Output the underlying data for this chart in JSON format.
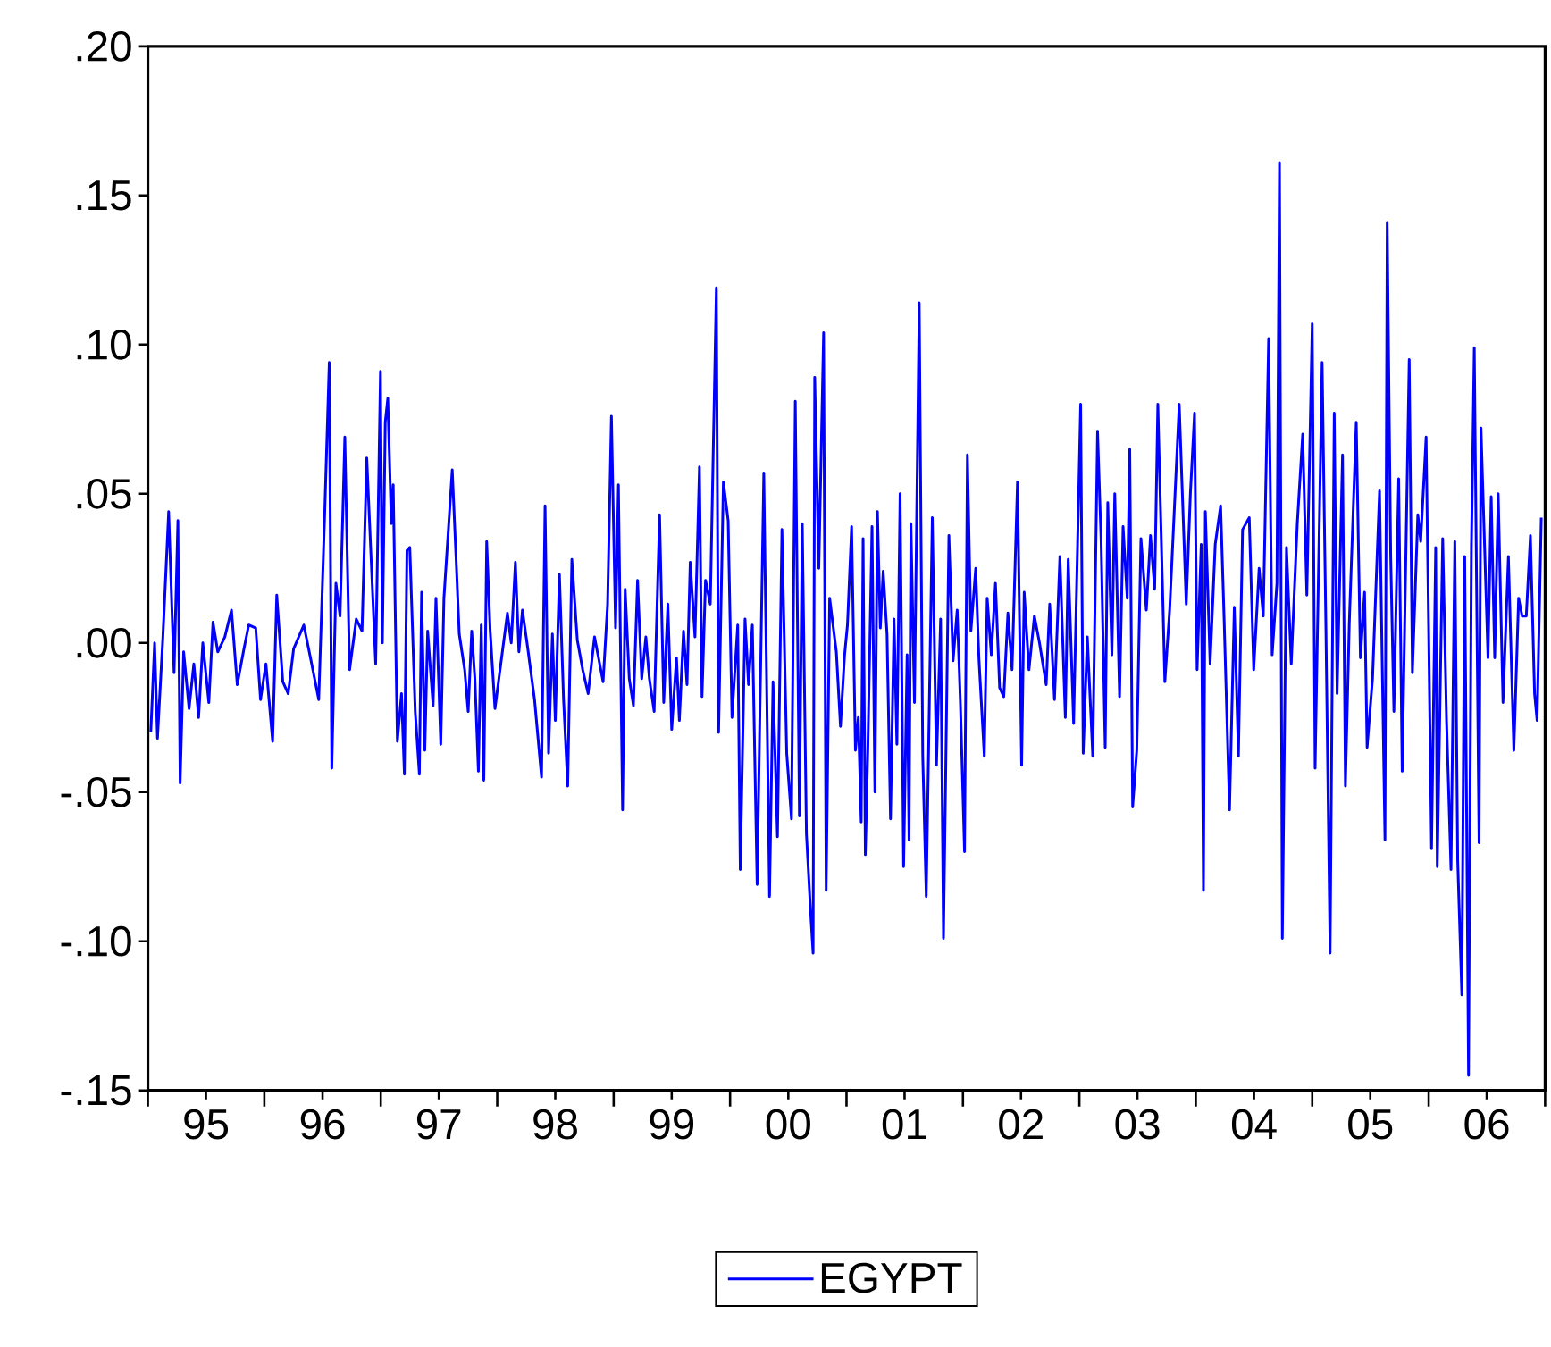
{
  "chart_data": {
    "type": "line",
    "x": [
      "1995-01-10",
      "1995-01-22",
      "1995-01-31",
      "1995-02-17",
      "1995-03-07",
      "1995-03-24",
      "1995-04-05",
      "1995-04-12",
      "1995-04-23",
      "1995-05-10",
      "1995-05-25",
      "1995-06-09",
      "1995-06-22",
      "1995-07-11",
      "1995-07-24",
      "1995-08-08",
      "1995-08-30",
      "1995-09-20",
      "1995-10-08",
      "1995-10-29",
      "1995-11-13",
      "1995-12-05",
      "1995-12-20",
      "1996-01-06",
      "1996-01-27",
      "1996-02-09",
      "1996-02-28",
      "1996-03-16",
      "1996-04-02",
      "1996-05-04",
      "1996-05-25",
      "1996-06-20",
      "1996-07-08",
      "1996-07-23",
      "1996-07-31",
      "1996-08-13",
      "1996-08-26",
      "1996-09-10",
      "1996-09-25",
      "1996-10-16",
      "1996-11-03",
      "1996-11-18",
      "1996-12-16",
      "1996-12-31",
      "1997-01-06",
      "1997-01-15",
      "1997-01-23",
      "1997-02-03",
      "1997-02-09",
      "1997-02-22",
      "1997-03-07",
      "1997-03-16",
      "1997-03-24",
      "1997-04-02",
      "1997-04-19",
      "1997-05-02",
      "1997-05-09",
      "1997-05-19",
      "1997-05-28",
      "1997-06-14",
      "1997-06-23",
      "1997-07-08",
      "1997-07-18",
      "1997-08-13",
      "1997-08-26",
      "1997-09-04",
      "1997-09-21",
      "1997-10-02",
      "1997-10-13",
      "1997-10-23",
      "1997-11-03",
      "1997-11-12",
      "1997-11-20",
      "1997-11-29",
      "1997-12-10",
      "1997-12-25",
      "1998-02-02",
      "1998-02-14",
      "1998-02-27",
      "1998-03-10",
      "1998-03-21",
      "1998-04-07",
      "1998-04-28",
      "1998-05-20",
      "1998-05-31",
      "1998-06-11",
      "1998-06-23",
      "1998-07-02",
      "1998-07-15",
      "1998-07-28",
      "1998-08-10",
      "1998-08-23",
      "1998-09-09",
      "1998-09-26",
      "1998-10-13",
      "1998-11-02",
      "1998-11-29",
      "1998-12-13",
      "1998-12-25",
      "1999-01-07",
      "1999-01-16",
      "1999-01-29",
      "1999-02-06",
      "1999-02-19",
      "1999-03-04",
      "1999-03-17",
      "1999-03-30",
      "1999-04-12",
      "1999-04-23",
      "1999-05-08",
      "1999-05-25",
      "1999-06-07",
      "1999-06-20",
      "1999-07-02",
      "1999-07-17",
      "1999-07-26",
      "1999-08-08",
      "1999-08-19",
      "1999-08-29",
      "1999-09-13",
      "1999-09-27",
      "1999-10-05",
      "1999-10-16",
      "1999-10-31",
      "1999-11-19",
      "1999-11-26",
      "1999-12-11",
      "1999-12-26",
      "2000-01-07",
      "2000-01-25",
      "2000-02-02",
      "2000-02-17",
      "2000-02-28",
      "2000-03-11",
      "2000-03-26",
      "2000-04-16",
      "2000-05-04",
      "2000-05-15",
      "2000-05-29",
      "2000-06-12",
      "2000-06-27",
      "2000-07-12",
      "2000-07-24",
      "2000-08-06",
      "2000-08-15",
      "2000-08-28",
      "2000-09-10",
      "2000-09-18",
      "2000-09-23",
      "2000-10-06",
      "2000-10-21",
      "2000-10-29",
      "2000-11-09",
      "2000-11-30",
      "2000-12-13",
      "2000-12-26",
      "2001-01-04",
      "2001-01-17",
      "2001-01-29",
      "2001-02-07",
      "2001-02-16",
      "2001-02-22",
      "2001-03-01",
      "2001-03-09",
      "2001-03-22",
      "2001-03-31",
      "2001-04-08",
      "2001-04-17",
      "2001-04-26",
      "2001-05-08",
      "2001-05-19",
      "2001-05-30",
      "2001-06-08",
      "2001-06-18",
      "2001-06-29",
      "2001-07-10",
      "2001-07-16",
      "2001-07-22",
      "2001-08-02",
      "2001-08-17",
      "2001-08-28",
      "2001-09-08",
      "2001-09-27",
      "2001-10-10",
      "2001-10-23",
      "2001-11-01",
      "2001-11-18",
      "2001-12-01",
      "2001-12-14",
      "2001-12-24",
      "2002-01-06",
      "2002-01-15",
      "2002-01-26",
      "2002-02-10",
      "2002-02-20",
      "2002-03-09",
      "2002-03-18",
      "2002-03-31",
      "2002-04-13",
      "2002-04-26",
      "2002-05-09",
      "2002-05-22",
      "2002-06-04",
      "2002-06-21",
      "2002-07-04",
      "2002-07-12",
      "2002-07-27",
      "2002-08-13",
      "2002-08-29",
      "2002-09-19",
      "2002-09-30",
      "2002-10-15",
      "2002-11-01",
      "2002-11-18",
      "2002-11-27",
      "2002-12-14",
      "2003-01-05",
      "2003-01-13",
      "2003-01-26",
      "2003-02-12",
      "2003-02-27",
      "2003-03-10",
      "2003-03-23",
      "2003-03-31",
      "2003-04-13",
      "2003-04-22",
      "2003-05-07",
      "2003-05-18",
      "2003-05-31",
      "2003-06-08",
      "2003-06-17",
      "2003-06-30",
      "2003-07-13",
      "2003-07-30",
      "2003-08-12",
      "2003-08-25",
      "2003-09-04",
      "2003-09-20",
      "2003-09-26",
      "2003-10-11",
      "2003-11-10",
      "2003-12-02",
      "2003-12-15",
      "2003-12-28",
      "2004-01-05",
      "2004-01-18",
      "2004-01-25",
      "2004-01-31",
      "2004-02-15",
      "2004-03-02",
      "2004-03-19",
      "2004-03-30",
      "2004-04-16",
      "2004-05-01",
      "2004-05-14",
      "2004-05-27",
      "2004-06-17",
      "2004-07-01",
      "2004-07-18",
      "2004-07-31",
      "2004-08-17",
      "2004-08-28",
      "2004-09-12",
      "2004-09-20",
      "2004-09-29",
      "2004-10-12",
      "2004-10-27",
      "2004-11-15",
      "2004-12-02",
      "2004-12-15",
      "2005-01-01",
      "2005-01-10",
      "2005-02-01",
      "2005-02-13",
      "2005-02-26",
      "2005-03-11",
      "2005-03-20",
      "2005-04-06",
      "2005-04-15",
      "2005-04-27",
      "2005-05-19",
      "2005-06-01",
      "2005-06-14",
      "2005-06-22",
      "2005-07-09",
      "2005-07-31",
      "2005-08-17",
      "2005-08-24",
      "2005-09-04",
      "2005-09-14",
      "2005-09-29",
      "2005-10-10",
      "2005-11-01",
      "2005-11-11",
      "2005-11-28",
      "2005-12-07",
      "2005-12-24",
      "2006-01-10",
      "2006-01-23",
      "2006-01-28",
      "2006-02-14",
      "2006-02-26",
      "2006-03-12",
      "2006-03-24",
      "2006-04-02",
      "2006-04-15",
      "2006-04-24",
      "2006-05-06",
      "2006-05-15",
      "2006-05-24",
      "2006-06-08",
      "2006-06-14",
      "2006-07-06",
      "2006-07-16",
      "2006-07-27",
      "2006-08-07",
      "2006-08-22",
      "2006-09-08",
      "2006-09-25",
      "2006-10-10",
      "2006-10-21",
      "2006-11-03",
      "2006-11-16",
      "2006-11-29",
      "2006-12-07",
      "2006-12-20"
    ],
    "series": [
      {
        "name": "EGYPT",
        "color": "#0000ff",
        "values": [
          -0.03,
          0.0,
          -0.032,
          0.002,
          0.044,
          -0.01,
          0.041,
          -0.047,
          -0.003,
          -0.022,
          -0.007,
          -0.025,
          0.0,
          -0.02,
          0.007,
          -0.003,
          0.002,
          0.011,
          -0.014,
          -0.002,
          0.006,
          0.005,
          -0.019,
          -0.007,
          -0.033,
          0.016,
          -0.013,
          -0.017,
          -0.002,
          0.006,
          -0.005,
          -0.019,
          0.041,
          0.094,
          -0.042,
          0.02,
          0.009,
          0.069,
          -0.009,
          0.008,
          0.004,
          0.062,
          -0.007,
          0.091,
          0.0,
          0.074,
          0.082,
          0.04,
          0.053,
          -0.033,
          -0.017,
          -0.044,
          0.031,
          0.032,
          -0.023,
          -0.044,
          0.017,
          -0.036,
          0.004,
          -0.021,
          0.015,
          -0.034,
          0.015,
          0.058,
          0.026,
          0.003,
          -0.009,
          -0.023,
          0.004,
          -0.012,
          -0.043,
          0.006,
          -0.046,
          0.034,
          0.004,
          -0.022,
          0.01,
          0.0,
          0.027,
          -0.003,
          0.011,
          -0.002,
          -0.019,
          -0.045,
          0.046,
          -0.037,
          0.003,
          -0.026,
          0.023,
          -0.019,
          -0.048,
          0.028,
          0.001,
          -0.009,
          -0.017,
          0.002,
          -0.013,
          0.013,
          0.076,
          0.005,
          0.053,
          -0.056,
          0.018,
          -0.012,
          -0.021,
          0.021,
          -0.012,
          0.002,
          -0.012,
          -0.023,
          0.043,
          -0.02,
          0.013,
          -0.029,
          -0.005,
          -0.026,
          0.004,
          -0.014,
          0.027,
          0.002,
          0.059,
          -0.018,
          0.021,
          0.013,
          0.119,
          -0.03,
          0.054,
          0.041,
          -0.025,
          0.006,
          -0.076,
          0.008,
          -0.014,
          0.006,
          -0.081,
          0.057,
          -0.085,
          -0.013,
          -0.065,
          0.038,
          -0.037,
          -0.059,
          0.081,
          -0.058,
          0.04,
          -0.064,
          -0.09,
          -0.104,
          0.089,
          0.025,
          0.104,
          -0.083,
          0.015,
          -0.003,
          -0.028,
          -0.004,
          0.006,
          0.039,
          -0.036,
          -0.025,
          -0.06,
          0.035,
          -0.071,
          -0.035,
          0.039,
          -0.05,
          0.044,
          0.005,
          0.024,
          0.003,
          -0.059,
          0.008,
          -0.034,
          0.05,
          -0.075,
          -0.004,
          -0.066,
          0.04,
          -0.02,
          0.114,
          -0.038,
          -0.085,
          0.042,
          -0.041,
          0.008,
          -0.099,
          0.036,
          -0.006,
          0.011,
          -0.02,
          -0.07,
          0.063,
          0.004,
          0.025,
          -0.005,
          -0.038,
          0.015,
          -0.004,
          0.02,
          -0.015,
          -0.018,
          0.01,
          -0.009,
          0.054,
          -0.041,
          0.017,
          -0.009,
          0.009,
          0.0,
          -0.014,
          0.013,
          -0.019,
          0.029,
          -0.025,
          0.028,
          -0.027,
          0.08,
          -0.037,
          0.002,
          -0.038,
          0.071,
          0.035,
          -0.035,
          0.047,
          -0.004,
          0.05,
          -0.018,
          0.039,
          0.015,
          0.065,
          -0.055,
          -0.036,
          0.035,
          0.011,
          0.036,
          0.018,
          0.08,
          0.013,
          -0.013,
          0.011,
          0.08,
          0.013,
          0.05,
          0.077,
          -0.009,
          0.033,
          -0.083,
          0.044,
          -0.007,
          0.033,
          0.046,
          0.008,
          -0.056,
          0.012,
          -0.038,
          0.038,
          0.042,
          -0.009,
          0.025,
          0.009,
          0.102,
          -0.004,
          0.02,
          0.161,
          -0.099,
          0.032,
          -0.007,
          0.04,
          0.07,
          0.016,
          0.107,
          -0.042,
          0.094,
          0.004,
          -0.104,
          0.077,
          -0.017,
          0.063,
          -0.048,
          0.006,
          0.074,
          -0.005,
          0.017,
          -0.035,
          -0.012,
          0.051,
          -0.066,
          0.141,
          0.029,
          -0.023,
          0.055,
          -0.043,
          0.095,
          -0.01,
          0.043,
          0.034,
          0.069,
          -0.069,
          0.032,
          -0.075,
          0.035,
          -0.026,
          -0.076,
          0.034,
          -0.073,
          -0.118,
          0.029,
          -0.145,
          0.032,
          0.099,
          -0.067,
          0.072,
          -0.005,
          0.049,
          -0.005,
          0.05,
          -0.02,
          0.029,
          -0.036,
          0.015,
          0.009,
          0.009,
          0.036,
          -0.017,
          -0.026,
          0.042
        ]
      }
    ],
    "xlim": [
      "1995-01-01",
      "2007-01-01"
    ],
    "xticks": [
      {
        "value": "1995-01-01",
        "label": null
      },
      {
        "value": "1995-07-02",
        "label": "95"
      },
      {
        "value": "1996-01-01",
        "label": null
      },
      {
        "value": "1996-07-02",
        "label": "96"
      },
      {
        "value": "1997-01-01",
        "label": null
      },
      {
        "value": "1997-07-02",
        "label": "97"
      },
      {
        "value": "1998-01-01",
        "label": null
      },
      {
        "value": "1998-07-02",
        "label": "98"
      },
      {
        "value": "1999-01-01",
        "label": null
      },
      {
        "value": "1999-07-02",
        "label": "99"
      },
      {
        "value": "2000-01-01",
        "label": null
      },
      {
        "value": "2000-07-02",
        "label": "00"
      },
      {
        "value": "2001-01-01",
        "label": null
      },
      {
        "value": "2001-07-02",
        "label": "01"
      },
      {
        "value": "2002-01-01",
        "label": null
      },
      {
        "value": "2002-07-02",
        "label": "02"
      },
      {
        "value": "2003-01-01",
        "label": null
      },
      {
        "value": "2003-07-02",
        "label": "03"
      },
      {
        "value": "2004-01-01",
        "label": null
      },
      {
        "value": "2004-07-02",
        "label": "04"
      },
      {
        "value": "2005-01-01",
        "label": null
      },
      {
        "value": "2005-07-02",
        "label": "05"
      },
      {
        "value": "2006-01-01",
        "label": null
      },
      {
        "value": "2006-07-02",
        "label": "06"
      },
      {
        "value": "2007-01-01",
        "label": null
      }
    ],
    "ylim": [
      -0.15,
      0.2
    ],
    "yticks": [
      {
        "value": -0.15,
        "label": "-.15"
      },
      {
        "value": -0.1,
        "label": "-.10"
      },
      {
        "value": -0.05,
        "label": "-.05"
      },
      {
        "value": 0,
        "label": ".00"
      },
      {
        "value": 0.05,
        "label": ".05"
      },
      {
        "value": 0.1,
        "label": ".10"
      },
      {
        "value": 0.15,
        "label": ".15"
      },
      {
        "value": 0.2,
        "label": ".20"
      }
    ],
    "legend": "bottom",
    "marker": "none",
    "line_style": "solid"
  }
}
